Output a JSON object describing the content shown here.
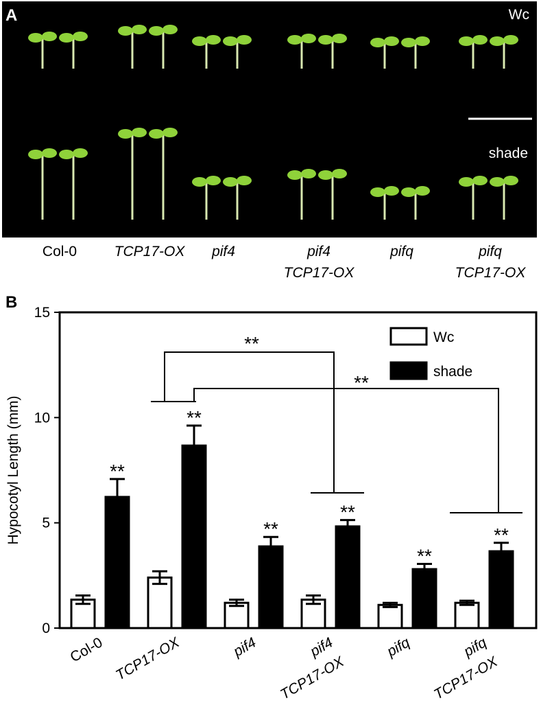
{
  "panel_a": {
    "label": "A",
    "conditions": [
      "Wc",
      "shade"
    ],
    "genotypes": [
      [
        "Col-0"
      ],
      [
        "TCP17-OX"
      ],
      [
        "pif4"
      ],
      [
        "pif4",
        "TCP17-OX"
      ],
      [
        "pifq"
      ],
      [
        "pifq",
        "TCP17-OX"
      ]
    ]
  },
  "chart_data": {
    "type": "bar",
    "panel": "B",
    "y_label": "Hypocotyl Length (mm)",
    "categories": [
      [
        "Col-0"
      ],
      [
        "TCP17-OX"
      ],
      [
        "pif4"
      ],
      [
        "pif4",
        "TCP17-OX"
      ],
      [
        "pifq"
      ],
      [
        "pifq",
        "TCP17-OX"
      ]
    ],
    "series": [
      {
        "name": "Wc",
        "color": "#ffffff",
        "values": [
          1.35,
          2.4,
          1.2,
          1.35,
          1.1,
          1.2
        ],
        "errors": [
          0.2,
          0.3,
          0.15,
          0.2,
          0.1,
          0.1
        ]
      },
      {
        "name": "shade",
        "color": "#000000",
        "values": [
          6.23,
          8.67,
          3.88,
          4.83,
          2.8,
          3.65
        ],
        "errors": [
          0.85,
          0.95,
          0.45,
          0.3,
          0.25,
          0.4
        ]
      }
    ],
    "significance": [
      "**",
      "**",
      "**",
      "**",
      "**",
      "**"
    ],
    "comparisons": [
      {
        "label": "**"
      },
      {
        "label": "**"
      }
    ],
    "ylim": [
      0,
      15
    ],
    "yticks": [
      0,
      5,
      10,
      15
    ],
    "legend": "top-right"
  }
}
